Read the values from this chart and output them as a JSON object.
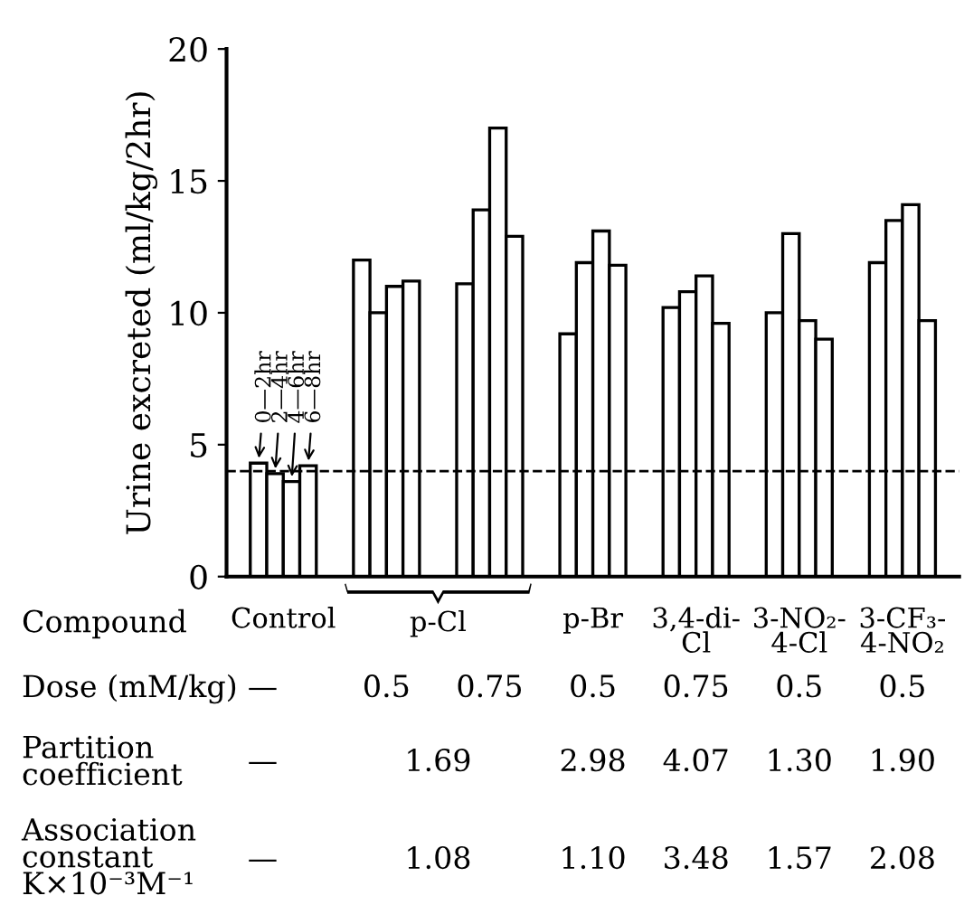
{
  "chart_data": {
    "type": "bar",
    "ylabel": "Urine excreted (ml/kg/2hr)",
    "categories": [
      "Control",
      null,
      null,
      "p-Br",
      "3,4-di-\nCl",
      "3-NO₂-\n4-Cl",
      "3-CF₃-\n4-NO₂"
    ],
    "series": [
      {
        "name": "0—2hr",
        "color": "#ffffff",
        "values": [
          4.3,
          12.0,
          11.1,
          9.2,
          10.2,
          10.0,
          11.9
        ]
      },
      {
        "name": "2—4hr",
        "color": "#ffffff",
        "values": [
          3.9,
          10.0,
          13.9,
          11.9,
          10.8,
          13.0,
          13.5
        ]
      },
      {
        "name": "4—6hr",
        "color": "#ffffff",
        "values": [
          3.6,
          11.0,
          17.0,
          13.1,
          11.4,
          9.7,
          14.1
        ]
      },
      {
        "name": "6—8hr",
        "color": "#ffffff",
        "values": [
          4.2,
          11.2,
          12.9,
          11.8,
          9.6,
          9.0,
          9.7
        ]
      }
    ],
    "ylim": [
      0,
      20
    ],
    "yticks": [
      0,
      5,
      10,
      15,
      20
    ],
    "grid": false,
    "legend": false,
    "ref_lines": [
      {
        "axis": "y",
        "value": 4.0,
        "line_style": "dashed",
        "color": "#000000"
      }
    ],
    "annotations": [
      "Compound",
      "p-Cl",
      "Dose (mM/kg)",
      "—",
      "0.5",
      "0.75",
      "0.5",
      "0.75",
      "0.5",
      "0.5",
      "Partition\ncoefficient",
      "—",
      "1.69",
      "2.98",
      "4.07",
      "1.30",
      "1.90",
      "Association\nconstant\nK×10⁻³M⁻¹",
      "—",
      "1.08",
      "1.10",
      "3.48",
      "1.57",
      "2.08"
    ]
  }
}
